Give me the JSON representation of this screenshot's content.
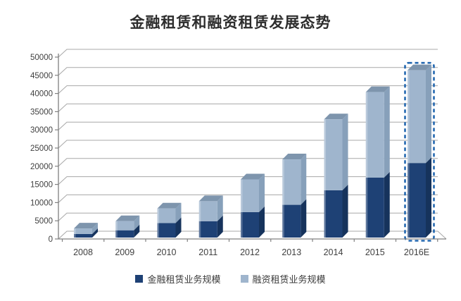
{
  "chart_data": {
    "type": "bar",
    "stacked": true,
    "pseudo_3d": true,
    "title": "金融租赁和融资租赁发展态势",
    "categories": [
      "2008",
      "2009",
      "2010",
      "2011",
      "2012",
      "2013",
      "2014",
      "2015",
      "2016E"
    ],
    "series": [
      {
        "name": "金融租赁业务规模",
        "color": "#1e4175",
        "side_color": "#16335c",
        "values": [
          1000,
          2000,
          4000,
          4500,
          7000,
          9000,
          13000,
          16500,
          20500
        ]
      },
      {
        "name": "融资租赁业务规模",
        "color": "#9fb5cd",
        "side_color": "#87a0ba",
        "top_color": "#7e95ad",
        "values": [
          1500,
          2500,
          4000,
          5500,
          9000,
          12500,
          19500,
          23500,
          25500
        ]
      }
    ],
    "ylim": [
      0,
      50000
    ],
    "ytick_step": 5000,
    "yticks": [
      0,
      5000,
      10000,
      15000,
      20000,
      25000,
      30000,
      35000,
      40000,
      45000,
      50000
    ],
    "grid": true,
    "gridline_color": "#a8a8a8",
    "axis_color": "#808080",
    "tick_label_color": "#3f3f3f",
    "legend_position": "bottom",
    "last_category_estimated": true,
    "dashed_outline_color": "#2468b0"
  }
}
